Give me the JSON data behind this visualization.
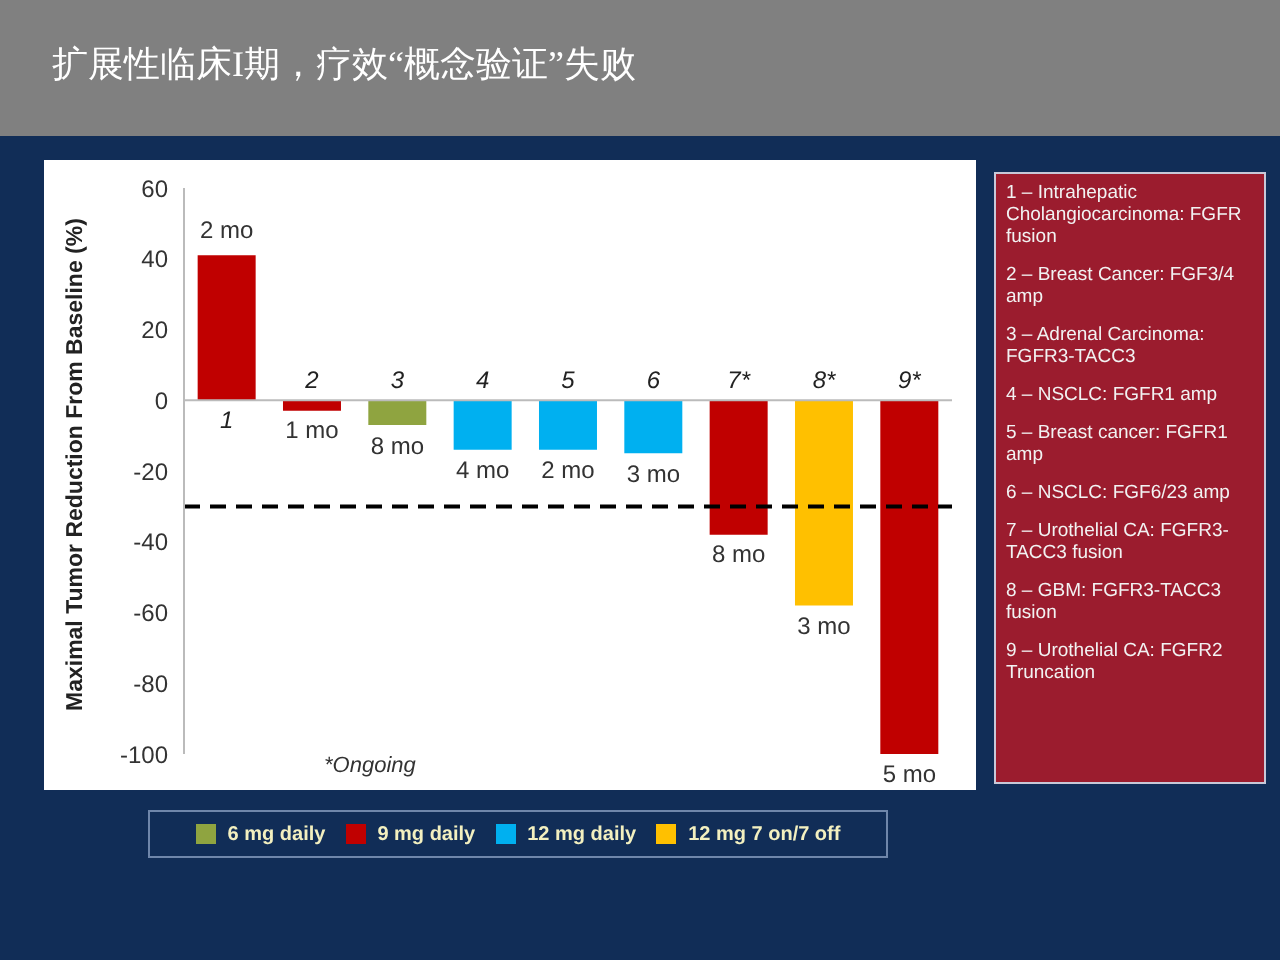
{
  "chart_data": {
    "type": "bar",
    "title": "扩展性临床I期，疗效“概念验证”失败",
    "ylabel": "Maximal Tumor Reduction From Baseline (%)",
    "categories": [
      "1",
      "2",
      "3",
      "4",
      "5",
      "6",
      "7*",
      "8*",
      "9*"
    ],
    "series": [
      {
        "name": "6 mg daily",
        "color": "#8fa440",
        "values": [
          null,
          null,
          -7,
          null,
          null,
          null,
          null,
          null,
          null
        ]
      },
      {
        "name": "9 mg daily",
        "color": "#c00000",
        "values": [
          41,
          -3,
          null,
          null,
          null,
          null,
          -38,
          null,
          -100
        ]
      },
      {
        "name": "12 mg daily",
        "color": "#00b0f0",
        "values": [
          null,
          null,
          null,
          -14,
          -14,
          -15,
          null,
          null,
          null
        ]
      },
      {
        "name": "12 mg 7 on/7 off",
        "color": "#ffc000",
        "values": [
          null,
          null,
          null,
          null,
          null,
          null,
          null,
          -58,
          null
        ]
      }
    ],
    "ylim": [
      -100,
      60
    ],
    "yticks": [
      -100,
      -80,
      -60,
      -40,
      -20,
      0,
      20,
      40,
      60
    ],
    "grid": false,
    "legend": "bottom",
    "ref_lines": [
      {
        "axis": "y",
        "value": -30,
        "color": "#000000",
        "line_style": "dashed"
      }
    ],
    "annotations": [
      "*Ongoing",
      "1 – Intrahepatic Cholangiocarcinoma: FGFR fusion",
      "2 – Breast Cancer: FGF3/4 amp",
      "3 – Adrenal Carcinoma: FGFR3-TACC3",
      "4 – NSCLC: FGFR1 amp",
      "5 – Breast cancer: FGFR1 amp",
      "6 – NSCLC: FGF6/23 amp",
      "7 – Urothelial CA: FGFR3-TACC3 fusion",
      "8 – GBM: FGFR3-TACC3 fusion",
      "9 – Urothelial CA: FGFR2 Truncation",
      {
        "text": "2 mo",
        "x": "1",
        "y": 41
      },
      {
        "text": "1 mo",
        "x": "2",
        "y": -3
      },
      {
        "text": "8 mo",
        "x": "3",
        "y": -7
      },
      {
        "text": "4 mo",
        "x": "4",
        "y": -14
      },
      {
        "text": "2 mo",
        "x": "5",
        "y": -14
      },
      {
        "text": "3 mo",
        "x": "6",
        "y": -15
      },
      {
        "text": "8 mo",
        "x": "7*",
        "y": -38
      },
      {
        "text": "3 mo",
        "x": "8*",
        "y": -58
      },
      {
        "text": "5 mo",
        "x": "9*",
        "y": -100
      }
    ]
  }
}
